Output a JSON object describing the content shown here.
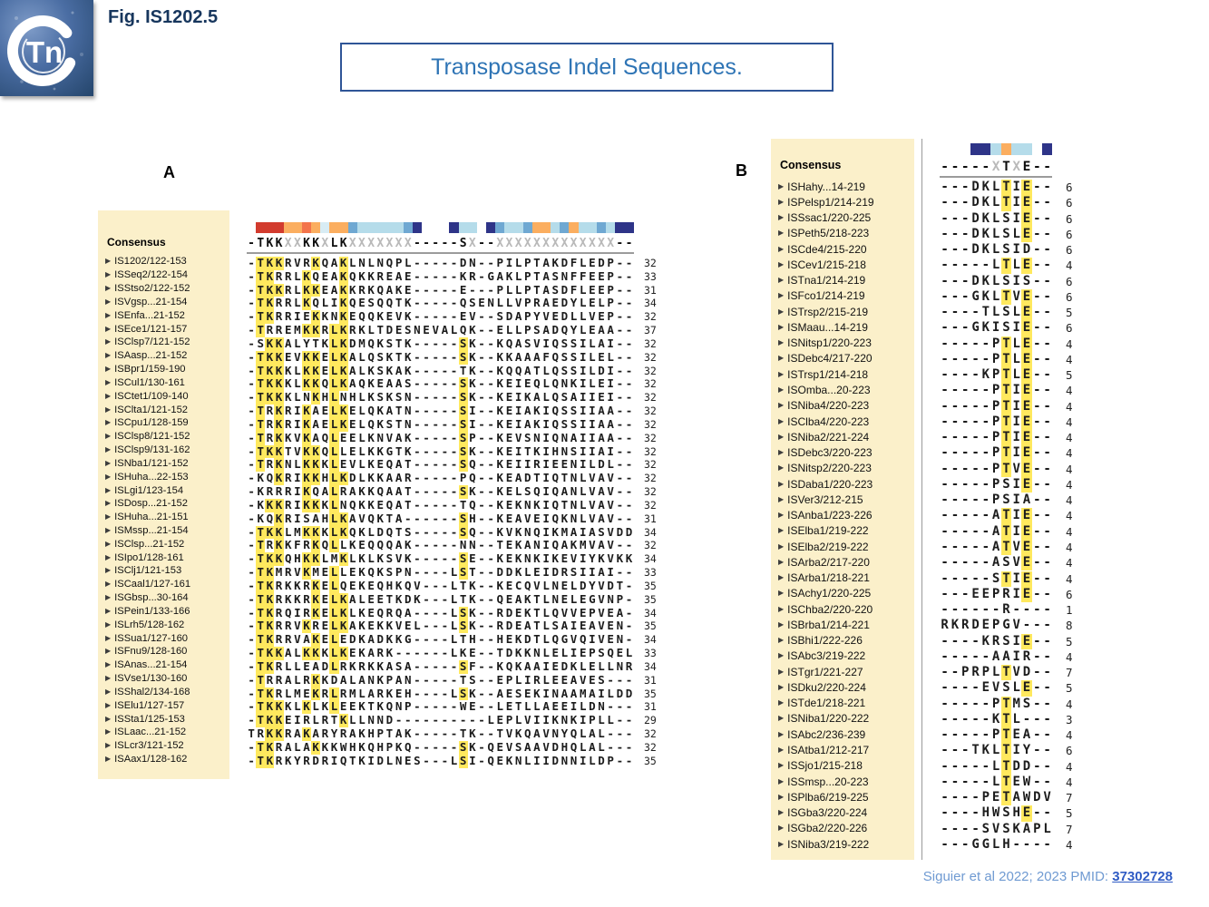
{
  "figure": {
    "logo_text": "Tn",
    "label": "Fig. IS1202.5",
    "title": "Transposase Indel Sequences."
  },
  "citation": {
    "text": "Siguier et al 2022; 2023 PMID:",
    "link_text": "37302728"
  },
  "colors": {
    "red": "#d23b2e",
    "coral": "#f3744b",
    "orange": "#fbae60",
    "pale": "#d8ecf4",
    "light": "#b5dcea",
    "steel": "#6fa8d2",
    "navy": "#2e3488",
    "highlight_yellow": "#ffe95e",
    "names_cream": "#fbf0ca",
    "title_blue": "#2e74b5",
    "fig_navy": "#17365d"
  },
  "panel_a": {
    "label": "A",
    "names_header": "Consensus",
    "consensus": "-TKKXXKKXLKXXXXXXX-----SX--XXXXXXXXXXXXX--",
    "bar": [
      "",
      "red",
      "red",
      "red",
      "orange",
      "orange",
      "coral",
      "orange",
      "pale",
      "orange",
      "orange",
      "steel",
      "light",
      "light",
      "light",
      "light",
      "light",
      "steel",
      "navy",
      "",
      "",
      "",
      "navy",
      "light",
      "light",
      "",
      "navy",
      "steel",
      "light",
      "light",
      "steel",
      "orange",
      "orange",
      "light",
      "steel",
      "orange",
      "light",
      "light",
      "steel",
      "light",
      "navy",
      "navy"
    ],
    "rows": [
      {
        "name": "IS1202/122-153",
        "seq": "-TKKRVRKQAKLNLNQPL-----DN--PILPTAKDFLEDP--",
        "n": 32
      },
      {
        "name": "ISSeq2/122-154",
        "seq": "-TKRRLKQEAKQKKREAE-----KR-GAKLPTASNFFEEP--",
        "n": 33
      },
      {
        "name": "ISStso2/122-152",
        "seq": "-TKKRLKKEAKKRKQAKE-----E---PLLPTASDFLEEP--",
        "n": 31
      },
      {
        "name": "ISVgsp...21-154",
        "seq": "-TKRRLKQLIKQESQQTK-----QSENLLVPRAEDYLELP--",
        "n": 34
      },
      {
        "name": "ISEnfa...21-152",
        "seq": "-TKRRIEKKNKEQQKEVK-----EV--SDAPYVEDLLVEP--",
        "n": 32
      },
      {
        "name": "ISEce1/121-157",
        "seq": "-TRREMKKRLKRKLTDESNEVALQK--ELLPSADQYLEAA--",
        "n": 37
      },
      {
        "name": "ISClsp7/121-152",
        "seq": "-SKKALYTKLKDMQKSTK-----SK--KQASVIQSSILAI--",
        "n": 32
      },
      {
        "name": "ISAasp...21-152",
        "seq": "-TKKEVKKELKALQSKTK-----SK--KKAAAFQSSILEL--",
        "n": 32
      },
      {
        "name": "ISBpr1/159-190",
        "seq": "-TKKKLKKELKALKSKAK-----TK--KQQATLQSSILDI--",
        "n": 32
      },
      {
        "name": "ISCul1/130-161",
        "seq": "-TKKKLKKQLKAQKEAAS-----SK--KEIEQLQNKILEI--",
        "n": 32
      },
      {
        "name": "ISCtet1/109-140",
        "seq": "-TKKKLNKHLNHLKSKSN-----SK--KEIKALQSAIIEI--",
        "n": 32
      },
      {
        "name": "ISClta1/121-152",
        "seq": "-TRKRIKAELKELQKATN-----SI--KEIAKIQSSIIAA--",
        "n": 32
      },
      {
        "name": "ISCpu1/128-159",
        "seq": "-TRKRIKAELKELQKSTN-----SI--KEIAKIQSSIIAA--",
        "n": 32
      },
      {
        "name": "ISClsp8/121-152",
        "seq": "-TRKKVKAQLEELKNVAK-----SP--KEVSNIQNAIIAA--",
        "n": 32
      },
      {
        "name": "ISClsp9/131-162",
        "seq": "-TKKTVKKQLLELKKGTK-----SK--KEITKIHNSIIAI--",
        "n": 32
      },
      {
        "name": "ISNba1/121-152",
        "seq": "-TRKNLKKKLEVLKEQAT-----SQ--KEIIRIEENILDL--",
        "n": 32
      },
      {
        "name": "ISHuha...22-153",
        "seq": "-KQKRIKKHLKDLKKAAR-----PQ--KEADTIQTNLVAV--",
        "n": 32
      },
      {
        "name": "ISLgi1/123-154",
        "seq": "-KRRRIKQALRAKKQAAT-----SK--KELSQIQANLVAV--",
        "n": 32
      },
      {
        "name": "ISDosp...21-152",
        "seq": "-KKKRIKKKLNQKKEQAT-----TQ--KEKNKIQTNLVAV--",
        "n": 32
      },
      {
        "name": "ISHuha...21-151",
        "seq": "-KQKRISAHLKAVQKTA------SH--KEAVEIQKNLVAV--",
        "n": 31
      },
      {
        "name": "ISMssp...21-154",
        "seq": "-TKKLMKKKLKQKLDQTS-----SQ--KVKNQIKMAIASVDD",
        "n": 34
      },
      {
        "name": "ISClsp...21-152",
        "seq": "-TRKKFRKQLLKEQQQAK-----NN--TEKANIQAKMVAV--",
        "n": 32
      },
      {
        "name": "ISIpo1/128-161",
        "seq": "-TKKQHKKLMKLKLKSVK-----SE--KEKNKIKEVIYKVKK",
        "n": 34
      },
      {
        "name": "ISClj1/121-153",
        "seq": "-TKMRVKMELLEKQKSPN----LST--DDKLEIDRSIIAI--",
        "n": 33
      },
      {
        "name": "ISCaal1/127-161",
        "seq": "-TKRKKRKELQEKEQHKQV---LTK--KECQVLNELDYVDT-",
        "n": 35
      },
      {
        "name": "ISGbsp...30-164",
        "seq": "-TKRKKRKELKALEETKDK---LTK--QEAKTLNELEGVNP-",
        "n": 35
      },
      {
        "name": "ISPein1/133-166",
        "seq": "-TKRQIRKELKLKEQRQA----LSK--RDEKTLQVVEPVEA-",
        "n": 34
      },
      {
        "name": "ISLrh5/128-162",
        "seq": "-TKRRVKRELKAKEKKVEL---LSK--RDEATLSAIEAVEN-",
        "n": 35
      },
      {
        "name": "ISSua1/127-160",
        "seq": "-TKRRVAKELEDKADKKG----LTH--HEKDTLQGVQIVEN-",
        "n": 34
      },
      {
        "name": "ISFnu9/128-160",
        "seq": "-TKKALKKKLKEKARK------LKE--TDKKNLELIEPSQEL",
        "n": 33
      },
      {
        "name": "ISAnas...21-154",
        "seq": "-TKRLLEADLRKRKKASA-----SF--KQKAAIEDKLELLNR",
        "n": 34
      },
      {
        "name": "ISVse1/130-160",
        "seq": "-TRRALRKKDALANKPAN-----TS--EPLIRLEEAVES---",
        "n": 31
      },
      {
        "name": "ISShal2/134-168",
        "seq": "-TKRLMEKRLRMLARKEH----LSK--AESEKINAAMAILDD",
        "n": 35
      },
      {
        "name": "ISElu1/127-157",
        "seq": "-TKKKLKLKLEEKTKQNP-----WE--LETLLAEEILDN---",
        "n": 31
      },
      {
        "name": "ISSta1/125-153",
        "seq": "-TKKEIRLRTKLLNND----------LEPLVIIKNKIPLL--",
        "n": 29
      },
      {
        "name": "ISLaac...21-152",
        "seq": "TRKKRAKARYRAKHPTAK-----TK--TVKQAVNYQLAL---",
        "n": 32
      },
      {
        "name": "ISLcr3/121-152",
        "seq": "-TKRALAKKKWHKQHPKQ-----SK-QEVSAAVDHQLAL---",
        "n": 32
      },
      {
        "name": "ISAax1/128-162",
        "seq": "-TKRKYRDRIQTKIDLNES---LSI-QEKNLIIDNNILDP--",
        "n": 35
      }
    ]
  },
  "panel_b": {
    "label": "B",
    "names_header": "Consensus",
    "consensus": "-----XTXE--",
    "bar": [
      "",
      "",
      "",
      "navy",
      "navy",
      "light",
      "orange",
      "light",
      "light",
      "",
      "navy"
    ],
    "rows": [
      {
        "name": "ISHahy...14-219",
        "seq": "---DKLTIE--",
        "n": 6
      },
      {
        "name": "ISPelsp1/214-219",
        "seq": "---DKLTIE--",
        "n": 6
      },
      {
        "name": "ISSsac1/220-225",
        "seq": "---DKLSIE--",
        "n": 6
      },
      {
        "name": "ISPeth5/218-223",
        "seq": "---DKLSLE--",
        "n": 6
      },
      {
        "name": "ISCde4/215-220",
        "seq": "---DKLSID--",
        "n": 6
      },
      {
        "name": "ISCev1/215-218",
        "seq": "-----LTLE--",
        "n": 4
      },
      {
        "name": "ISTna1/214-219",
        "seq": "---DKLSIS--",
        "n": 6
      },
      {
        "name": "ISFco1/214-219",
        "seq": "---GKLTVE--",
        "n": 6
      },
      {
        "name": "ISTrsp2/215-219",
        "seq": "----TLSLE--",
        "n": 5
      },
      {
        "name": "ISMaau...14-219",
        "seq": "---GKISIE--",
        "n": 6
      },
      {
        "name": "ISNitsp1/220-223",
        "seq": "-----PTLE--",
        "n": 4
      },
      {
        "name": "ISDebc4/217-220",
        "seq": "-----PTLE--",
        "n": 4
      },
      {
        "name": "ISTrsp1/214-218",
        "seq": "----KPTLE--",
        "n": 5
      },
      {
        "name": "ISOmba...20-223",
        "seq": "-----PTIE--",
        "n": 4
      },
      {
        "name": "ISNiba4/220-223",
        "seq": "-----PTIE--",
        "n": 4
      },
      {
        "name": "ISClba4/220-223",
        "seq": "-----PTIE--",
        "n": 4
      },
      {
        "name": "ISNiba2/221-224",
        "seq": "-----PTIE--",
        "n": 4
      },
      {
        "name": "ISDebc3/220-223",
        "seq": "-----PTIE--",
        "n": 4
      },
      {
        "name": "ISNitsp2/220-223",
        "seq": "-----PTVE--",
        "n": 4
      },
      {
        "name": "ISDaba1/220-223",
        "seq": "-----PSIE--",
        "n": 4
      },
      {
        "name": "ISVer3/212-215",
        "seq": "-----PSIA--",
        "n": 4
      },
      {
        "name": "ISAnba1/223-226",
        "seq": "-----ATIE--",
        "n": 4
      },
      {
        "name": "ISElba1/219-222",
        "seq": "-----ATIE--",
        "n": 4
      },
      {
        "name": "ISElba2/219-222",
        "seq": "-----ATVE--",
        "n": 4
      },
      {
        "name": "ISArba2/217-220",
        "seq": "-----ASVE--",
        "n": 4
      },
      {
        "name": "ISArba1/218-221",
        "seq": "-----STIE--",
        "n": 4
      },
      {
        "name": "ISAchy1/220-225",
        "seq": "---EEPRIE--",
        "n": 6
      },
      {
        "name": "ISChba2/220-220",
        "seq": "------R----",
        "n": 1
      },
      {
        "name": "ISBrba1/214-221",
        "seq": "RKRDEPGV---",
        "n": 8
      },
      {
        "name": "ISBhi1/222-226",
        "seq": "----KRSIE--",
        "n": 5
      },
      {
        "name": "ISAbc3/219-222",
        "seq": "-----AAIR--",
        "n": 4
      },
      {
        "name": "ISTgr1/221-227",
        "seq": "--PRPLTVD--",
        "n": 7
      },
      {
        "name": "ISDku2/220-224",
        "seq": "----EVSLE--",
        "n": 5
      },
      {
        "name": "ISTde1/218-221",
        "seq": "-----PTMS--",
        "n": 4
      },
      {
        "name": "ISNiba1/220-222",
        "seq": "-----KTL---",
        "n": 3
      },
      {
        "name": "ISAbc2/236-239",
        "seq": "-----PTEA--",
        "n": 4
      },
      {
        "name": "ISAtba1/212-217",
        "seq": "---TKLTIY--",
        "n": 6
      },
      {
        "name": "ISSjo1/215-218",
        "seq": "-----LTDD--",
        "n": 4
      },
      {
        "name": "ISSmsp...20-223",
        "seq": "-----LTEW--",
        "n": 4
      },
      {
        "name": "ISPlba6/219-225",
        "seq": "----PETAWDV",
        "n": 7
      },
      {
        "name": "ISGba3/220-224",
        "seq": "----HWSHE--",
        "n": 5
      },
      {
        "name": "ISGba2/220-226",
        "seq": "----SVSKAPL",
        "n": 7
      },
      {
        "name": "ISNiba3/219-222",
        "seq": "---GGLH----",
        "n": 4
      }
    ]
  }
}
